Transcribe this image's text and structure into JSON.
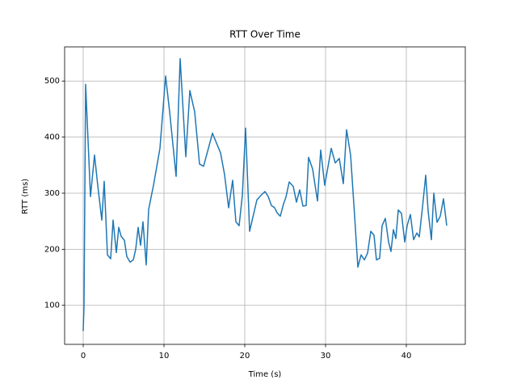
{
  "chart_data": {
    "type": "line",
    "title": "RTT Over Time",
    "x_label": "Time (s)",
    "y_label": "RTT (ms)",
    "x": [
      0,
      0.1,
      0.3,
      0.9,
      1.4,
      1.8,
      2.3,
      2.6,
      3.0,
      3.4,
      3.7,
      4.1,
      4.4,
      4.7,
      5.1,
      5.4,
      5.8,
      6.2,
      6.5,
      6.8,
      7.1,
      7.4,
      7.8,
      8.1,
      8.7,
      9.5,
      10.2,
      10.7,
      11.5,
      12.0,
      12.7,
      13.2,
      13.8,
      14.4,
      14.9,
      15.5,
      16.0,
      17.0,
      17.5,
      18.0,
      18.5,
      18.9,
      19.3,
      19.7,
      20.1,
      20.6,
      21.0,
      21.5,
      22.0,
      22.5,
      22.9,
      23.3,
      23.7,
      24.0,
      24.4,
      24.8,
      25.1,
      25.5,
      26.0,
      26.4,
      26.8,
      27.2,
      27.6,
      27.9,
      28.4,
      29.0,
      29.4,
      29.9,
      30.7,
      31.2,
      31.7,
      32.2,
      32.6,
      33.1,
      33.6,
      34.0,
      34.4,
      34.8,
      35.2,
      35.6,
      36.0,
      36.3,
      36.7,
      37.0,
      37.4,
      37.8,
      38.1,
      38.4,
      38.7,
      39.0,
      39.4,
      39.8,
      40.1,
      40.5,
      40.9,
      41.3,
      41.6,
      42.0,
      42.4,
      42.7,
      43.1,
      43.4,
      43.8,
      44.2,
      44.6,
      45.0
    ],
    "series": [
      {
        "name": "RTT",
        "color": "#1f77b4",
        "values": [
          54,
          100,
          494,
          294,
          368,
          314,
          252,
          321,
          190,
          183,
          252,
          194,
          239,
          223,
          216,
          187,
          177,
          181,
          200,
          239,
          207,
          249,
          172,
          271,
          314,
          380,
          509,
          445,
          330,
          540,
          365,
          483,
          445,
          352,
          348,
          380,
          407,
          372,
          333,
          274,
          323,
          249,
          242,
          296,
          416,
          232,
          257,
          288,
          296,
          303,
          294,
          278,
          274,
          265,
          259,
          281,
          293,
          320,
          312,
          284,
          306,
          277,
          278,
          364,
          343,
          286,
          377,
          314,
          380,
          354,
          362,
          317,
          413,
          368,
          259,
          168,
          190,
          181,
          193,
          232,
          225,
          181,
          184,
          242,
          255,
          213,
          196,
          235,
          219,
          270,
          264,
          213,
          242,
          262,
          217,
          229,
          222,
          275,
          332,
          268,
          217,
          300,
          248,
          259,
          290,
          242
        ]
      }
    ],
    "xlim": [
      -2.3,
      47.3
    ],
    "ylim": [
      30.4,
      560.9
    ],
    "xticks": [
      0,
      10,
      20,
      30,
      40
    ],
    "yticks": [
      100,
      200,
      300,
      400,
      500
    ],
    "grid": true
  }
}
